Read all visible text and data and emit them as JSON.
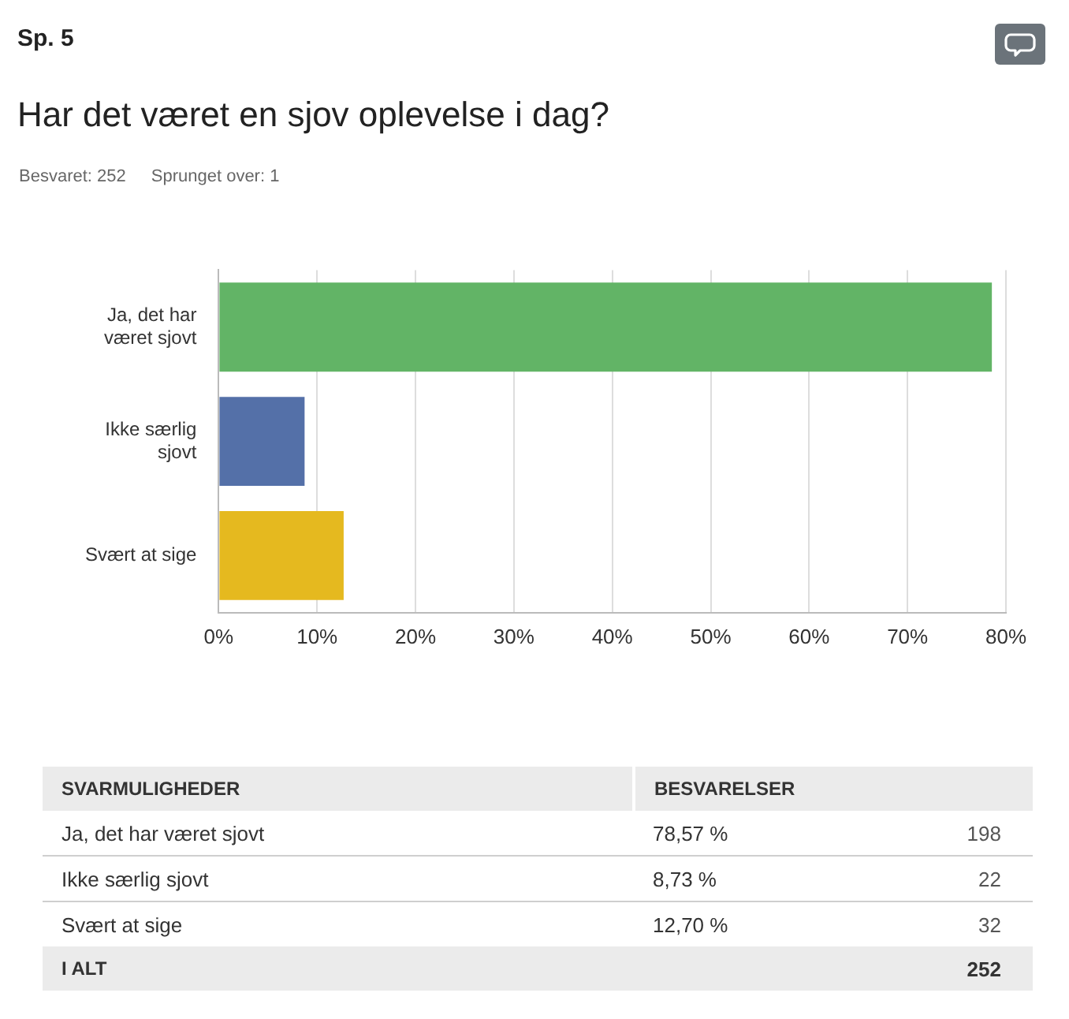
{
  "chart_data": {
    "type": "bar",
    "orientation": "horizontal",
    "title": "Har det været en sjov oplevelse i dag?",
    "categories": [
      "Ja, det har været sjovt",
      "Ikke særlig sjovt",
      "Svært at sige"
    ],
    "values": [
      78.57,
      8.73,
      12.7
    ],
    "colors": [
      "#62b466",
      "#5470a8",
      "#e5b91f"
    ],
    "xlim": [
      0,
      80
    ],
    "xticks": [
      {
        "value": 0,
        "label": "0%"
      },
      {
        "value": 10,
        "label": "10%"
      },
      {
        "value": 20,
        "label": "20%"
      },
      {
        "value": 30,
        "label": "30%"
      },
      {
        "value": 40,
        "label": "40%"
      },
      {
        "value": 50,
        "label": "50%"
      },
      {
        "value": 60,
        "label": "60%"
      },
      {
        "value": 70,
        "label": "70%"
      },
      {
        "value": 80,
        "label": "80%"
      }
    ],
    "grid": "x",
    "annotations": [
      "Sp. 5",
      "Besvaret: 252",
      "Sprunget over: 1",
      "SVARMULIGHEDER",
      "BESVARELSER",
      "78,57 %",
      "8,73 %",
      "12,70 %",
      "198",
      "22",
      "32",
      "I ALT",
      "252"
    ]
  }
}
